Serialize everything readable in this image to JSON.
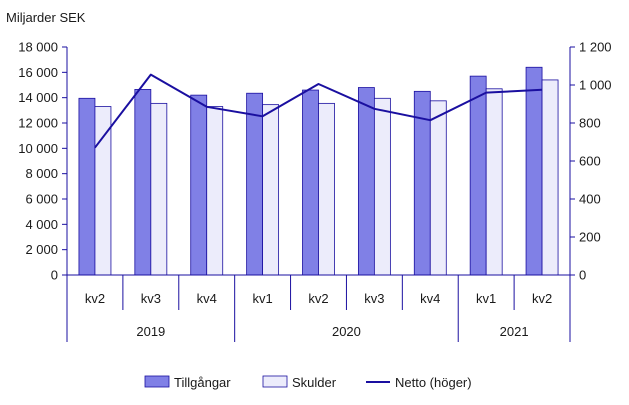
{
  "chart_data": {
    "type": "bar",
    "unit_label": "Miljarder SEK",
    "categories": [
      "kv2",
      "kv3",
      "kv4",
      "kv1",
      "kv2",
      "kv3",
      "kv4",
      "kv1",
      "kv2"
    ],
    "year_groups": [
      {
        "label": "2019",
        "count": 3
      },
      {
        "label": "2020",
        "count": 4
      },
      {
        "label": "2021",
        "count": 2
      }
    ],
    "left_axis": {
      "ylim": [
        0,
        18000
      ],
      "ticks": [
        "0",
        "2 000",
        "4 000",
        "6 000",
        "8 000",
        "10 000",
        "12 000",
        "14 000",
        "16 000",
        "18 000"
      ]
    },
    "right_axis": {
      "ylim": [
        0,
        1200
      ],
      "ticks": [
        "0",
        "200",
        "400",
        "600",
        "800",
        "1 000",
        "1 200"
      ]
    },
    "series": [
      {
        "name": "Tillgångar",
        "kind": "bar",
        "axis": "left",
        "color": "#8080e6",
        "values": [
          13950,
          14650,
          14200,
          14350,
          14600,
          14800,
          14500,
          15700,
          16400
        ]
      },
      {
        "name": "Skulder",
        "kind": "bar",
        "axis": "left",
        "color": "#ececfb",
        "values": [
          13300,
          13550,
          13300,
          13450,
          13550,
          13950,
          13750,
          14700,
          15400
        ]
      },
      {
        "name": "Netto (höger)",
        "kind": "line",
        "axis": "right",
        "color": "#1a0fa0",
        "values": [
          670,
          1055,
          885,
          835,
          1005,
          875,
          815,
          960,
          975
        ]
      }
    ],
    "grid": false,
    "legend_position": "bottom"
  }
}
